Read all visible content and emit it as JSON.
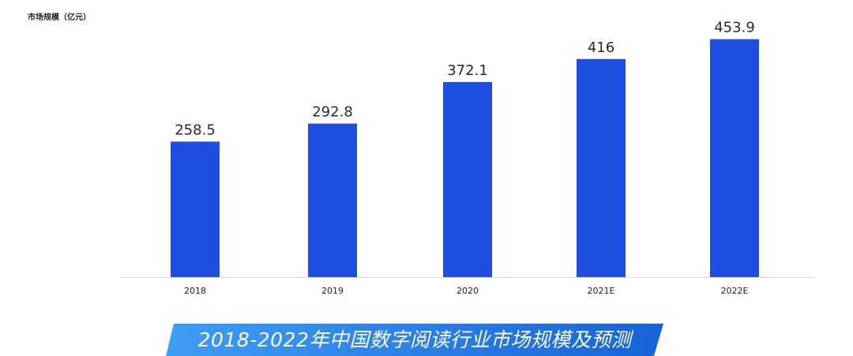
{
  "unit_label": "市场规模（亿元）",
  "banner_title": "2018-2022年中国数字阅读行业市场规模及预测",
  "colors": {
    "bar": "#1f4fe0",
    "axis": "#d6d6d6",
    "value_text": "#222a3a",
    "tick_text": "#222222",
    "banner_start": "#3f9ef5",
    "banner_end": "#1763d8"
  },
  "chart_data": {
    "type": "bar",
    "title": "2018-2022年中国数字阅读行业市场规模及预测",
    "ylabel": "市场规模（亿元）",
    "xlabel": "",
    "categories": [
      "2018",
      "2019",
      "2020",
      "2021E",
      "2022E"
    ],
    "values": [
      258.5,
      292.8,
      372.1,
      416,
      453.9
    ],
    "value_labels": [
      "258.5",
      "292.8",
      "372.1",
      "416",
      "453.9"
    ],
    "ylim": [
      0,
      500
    ],
    "grid": false,
    "legend": "none"
  }
}
